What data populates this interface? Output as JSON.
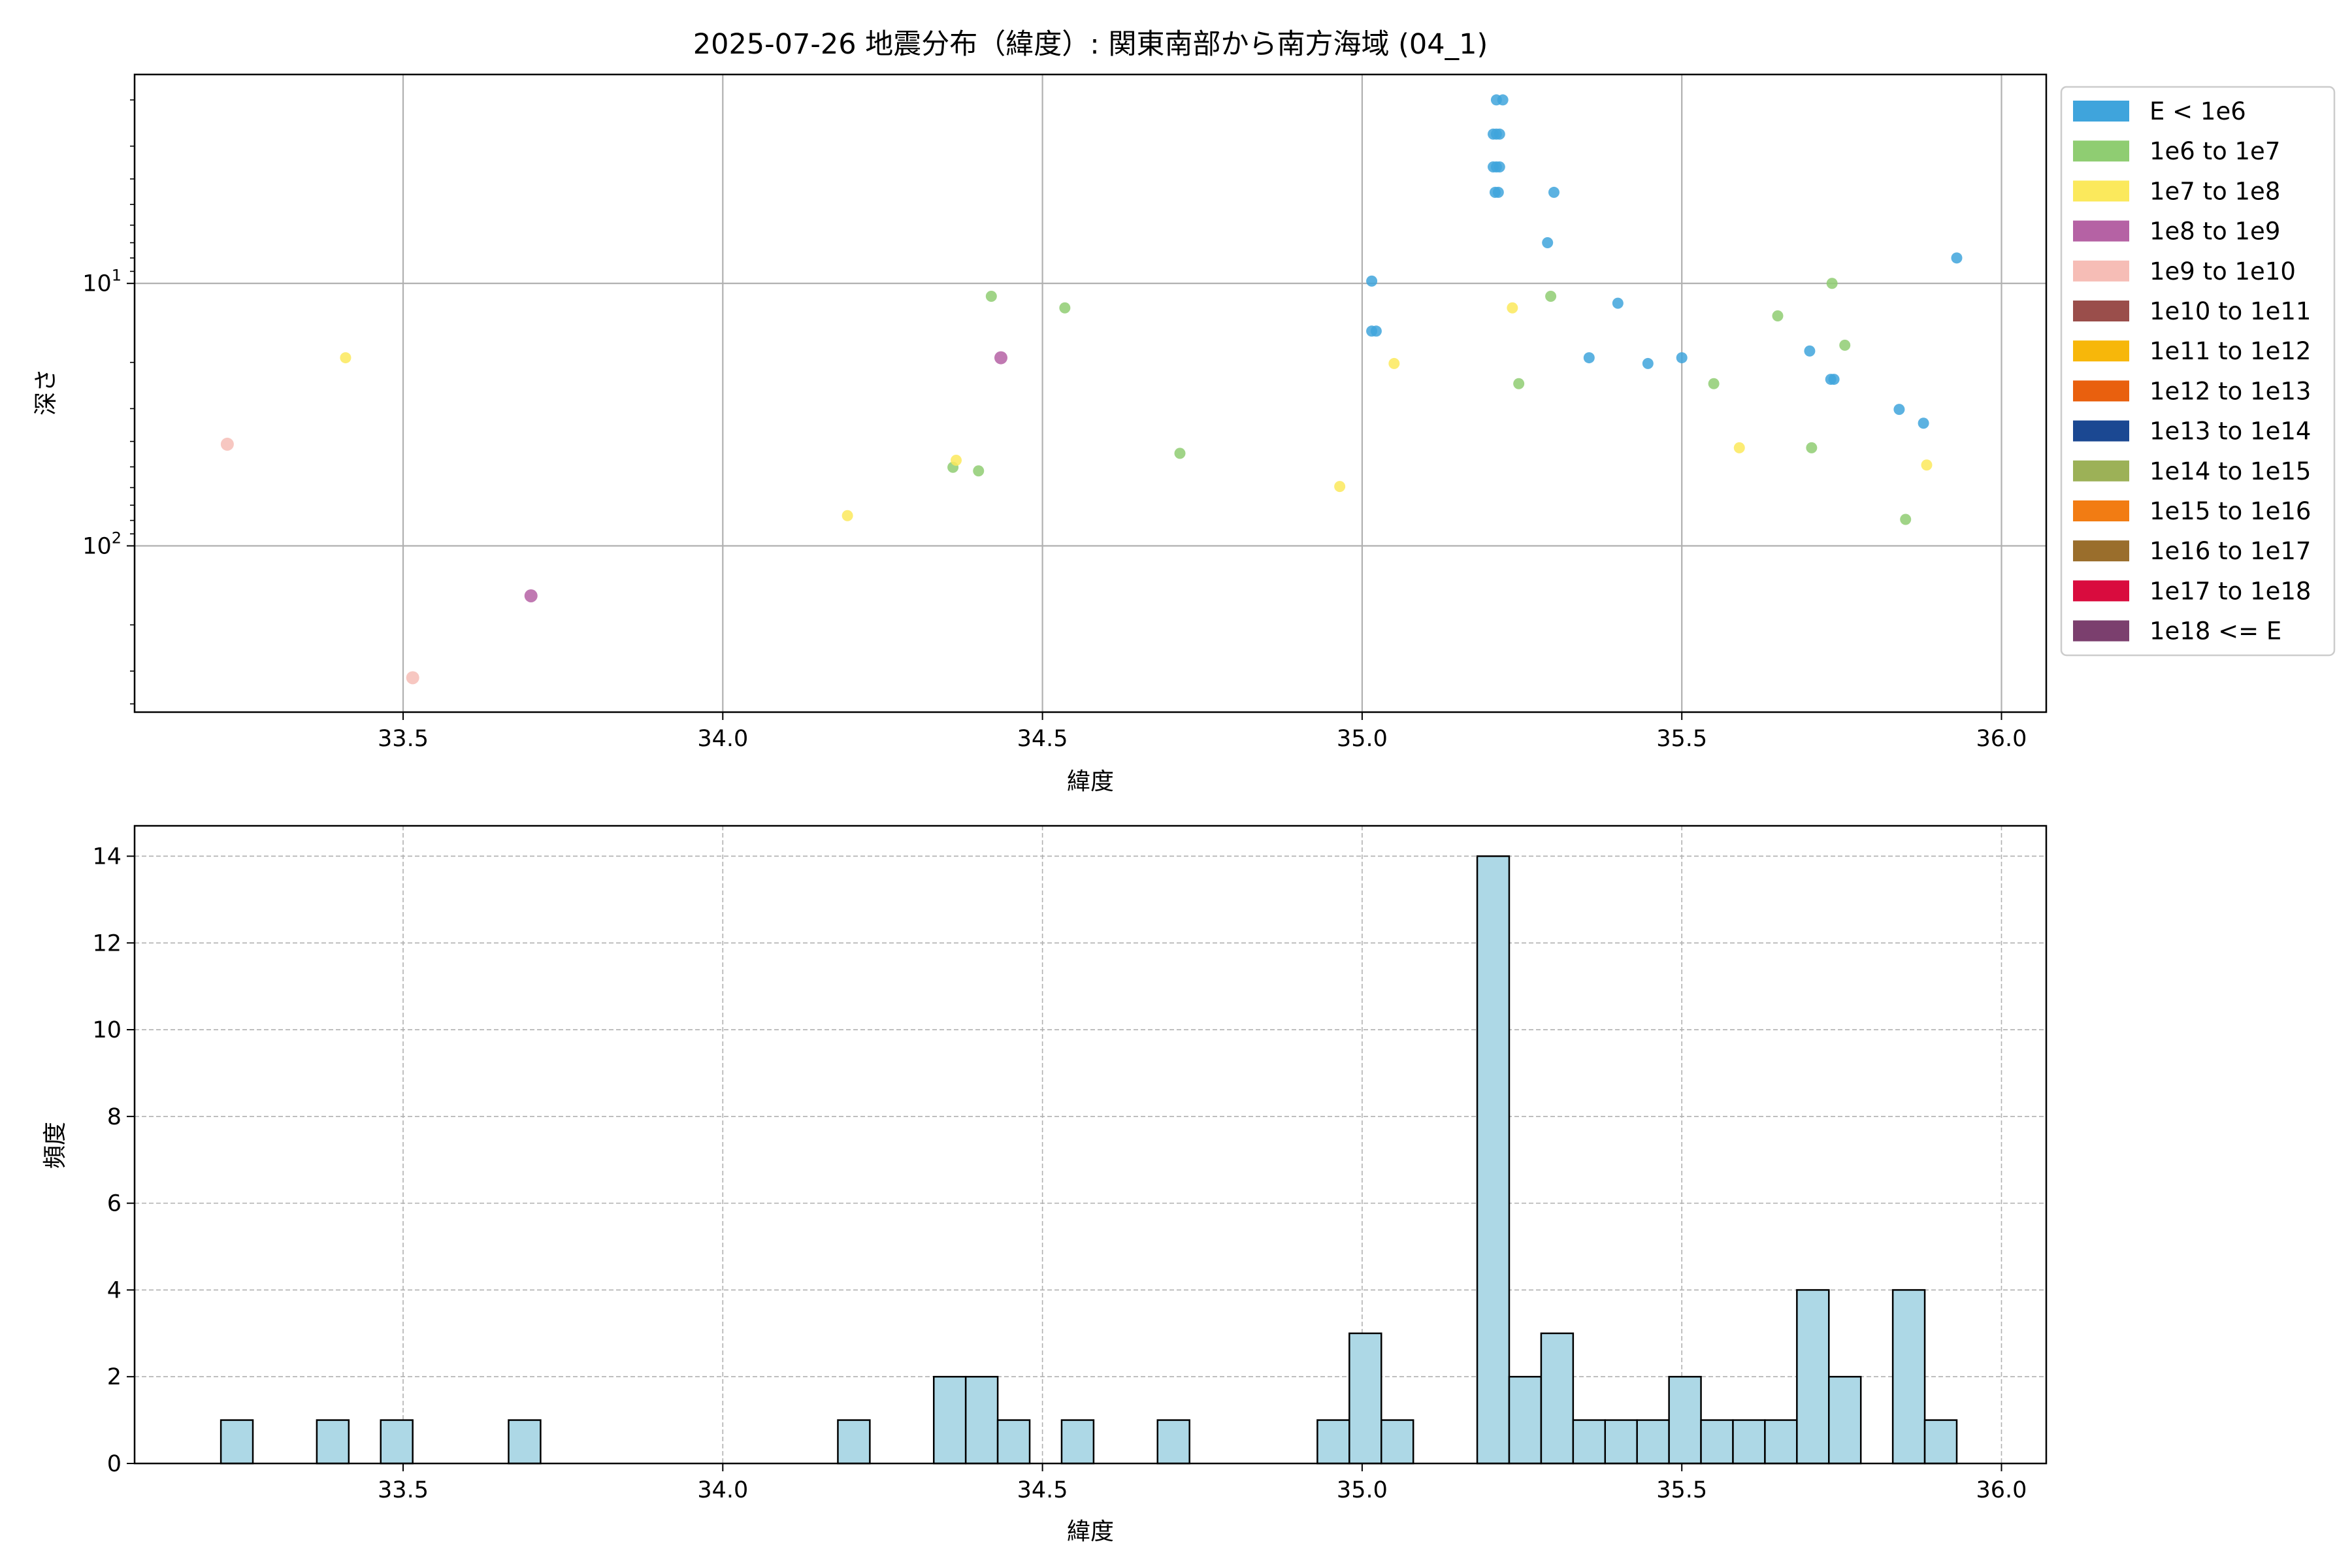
{
  "chart_data": [
    {
      "type": "scatter",
      "title": "2025-07-26 地震分布（緯度）: 関東南部から南方海域 (04_1)",
      "xlabel": "緯度",
      "ylabel": "深さ",
      "xlim": [
        33.08,
        36.07
      ],
      "ylim": [
        430,
        1.6
      ],
      "yscale": "log",
      "y_inverted": true,
      "x_ticks": [
        "33.5",
        "34.0",
        "34.5",
        "35.0",
        "35.5",
        "36.0"
      ],
      "x_tick_values": [
        33.5,
        34.0,
        34.5,
        35.0,
        35.5,
        36.0
      ],
      "y_ticks": [
        {
          "base": "10",
          "exp": "1",
          "value": 10
        },
        {
          "base": "10",
          "exp": "2",
          "value": 100
        }
      ],
      "grid": true,
      "legend_position": "outside-right-top",
      "legend": [
        {
          "label": "E < 1e6",
          "color": "#3fa4dc"
        },
        {
          "label": "1e6 to 1e7",
          "color": "#8fcd72"
        },
        {
          "label": "1e7 to 1e8",
          "color": "#fbe95c"
        },
        {
          "label": "1e8 to 1e9",
          "color": "#b562a4"
        },
        {
          "label": "1e9 to 1e10",
          "color": "#f6bdb6"
        },
        {
          "label": "1e10 to 1e11",
          "color": "#9a4e4b"
        },
        {
          "label": "1e11 to 1e12",
          "color": "#f7b70a"
        },
        {
          "label": "1e12 to 1e13",
          "color": "#e9600e"
        },
        {
          "label": "1e13 to 1e14",
          "color": "#1b4892"
        },
        {
          "label": "1e14 to 1e15",
          "color": "#9cb157"
        },
        {
          "label": "1e15 to 1e16",
          "color": "#f27c13"
        },
        {
          "label": "1e16 to 1e17",
          "color": "#9a6e2c"
        },
        {
          "label": "1e17 to 1e18",
          "color": "#d90c3e"
        },
        {
          "label": "1e18 <= E",
          "color": "#7b3f6e"
        }
      ],
      "points": [
        {
          "x": 35.21,
          "y": 2.0,
          "c": 0
        },
        {
          "x": 35.22,
          "y": 2.0,
          "c": 0
        },
        {
          "x": 35.205,
          "y": 2.7,
          "c": 0
        },
        {
          "x": 35.21,
          "y": 2.7,
          "c": 0
        },
        {
          "x": 35.215,
          "y": 2.7,
          "c": 0
        },
        {
          "x": 35.205,
          "y": 3.6,
          "c": 0
        },
        {
          "x": 35.21,
          "y": 3.6,
          "c": 0
        },
        {
          "x": 35.215,
          "y": 3.6,
          "c": 0
        },
        {
          "x": 35.208,
          "y": 4.5,
          "c": 0
        },
        {
          "x": 35.213,
          "y": 4.5,
          "c": 0
        },
        {
          "x": 35.3,
          "y": 4.5,
          "c": 0
        },
        {
          "x": 35.29,
          "y": 7.0,
          "c": 0
        },
        {
          "x": 35.93,
          "y": 8.0,
          "c": 0
        },
        {
          "x": 35.015,
          "y": 9.8,
          "c": 0
        },
        {
          "x": 35.015,
          "y": 15.2,
          "c": 0
        },
        {
          "x": 35.022,
          "y": 15.2,
          "c": 0
        },
        {
          "x": 35.4,
          "y": 11.9,
          "c": 0
        },
        {
          "x": 35.5,
          "y": 19.2,
          "c": 0
        },
        {
          "x": 35.355,
          "y": 19.2,
          "c": 0
        },
        {
          "x": 35.447,
          "y": 20.2,
          "c": 0
        },
        {
          "x": 35.7,
          "y": 18.1,
          "c": 0
        },
        {
          "x": 35.733,
          "y": 23.2,
          "c": 0
        },
        {
          "x": 35.738,
          "y": 23.2,
          "c": 0
        },
        {
          "x": 35.84,
          "y": 30.2,
          "c": 0
        },
        {
          "x": 35.878,
          "y": 34.1,
          "c": 0
        },
        {
          "x": 34.42,
          "y": 11.2,
          "c": 1
        },
        {
          "x": 34.535,
          "y": 12.4,
          "c": 1
        },
        {
          "x": 35.295,
          "y": 11.2,
          "c": 1
        },
        {
          "x": 35.735,
          "y": 10.0,
          "c": 1
        },
        {
          "x": 35.65,
          "y": 13.3,
          "c": 1
        },
        {
          "x": 35.755,
          "y": 17.2,
          "c": 1
        },
        {
          "x": 35.245,
          "y": 24.1,
          "c": 1
        },
        {
          "x": 35.55,
          "y": 24.1,
          "c": 1
        },
        {
          "x": 34.715,
          "y": 44.4,
          "c": 1
        },
        {
          "x": 35.703,
          "y": 42.3,
          "c": 1
        },
        {
          "x": 34.36,
          "y": 50.2,
          "c": 1
        },
        {
          "x": 34.4,
          "y": 51.8,
          "c": 1
        },
        {
          "x": 35.85,
          "y": 79.3,
          "c": 1
        },
        {
          "x": 33.41,
          "y": 19.2,
          "c": 2
        },
        {
          "x": 35.235,
          "y": 12.4,
          "c": 2
        },
        {
          "x": 35.05,
          "y": 20.2,
          "c": 2
        },
        {
          "x": 34.365,
          "y": 47.2,
          "c": 2
        },
        {
          "x": 35.59,
          "y": 42.3,
          "c": 2
        },
        {
          "x": 35.883,
          "y": 49.2,
          "c": 2
        },
        {
          "x": 34.965,
          "y": 59.4,
          "c": 2
        },
        {
          "x": 34.195,
          "y": 76.7,
          "c": 2
        },
        {
          "x": 34.435,
          "y": 19.2,
          "c": 3
        },
        {
          "x": 33.7,
          "y": 155.0,
          "c": 3
        },
        {
          "x": 33.225,
          "y": 41.0,
          "c": 4
        },
        {
          "x": 33.515,
          "y": 318.0,
          "c": 4
        }
      ]
    },
    {
      "type": "bar",
      "title": "",
      "xlabel": "緯度",
      "ylabel": "頻度",
      "xlim": [
        33.08,
        36.07
      ],
      "ylim": [
        0,
        14.7
      ],
      "x_ticks": [
        "33.5",
        "34.0",
        "34.5",
        "35.0",
        "35.5",
        "36.0"
      ],
      "x_tick_values": [
        33.5,
        34.0,
        34.5,
        35.0,
        35.5,
        36.0
      ],
      "y_ticks": [
        "0",
        "2",
        "4",
        "6",
        "8",
        "10",
        "12",
        "14"
      ],
      "y_tick_values": [
        0,
        2,
        4,
        6,
        8,
        10,
        12,
        14
      ],
      "grid": true,
      "bar_color": "#add8e6",
      "bin_width": 0.05,
      "bins": [
        {
          "x0": 33.215,
          "v": 1
        },
        {
          "x0": 33.365,
          "v": 1
        },
        {
          "x0": 33.465,
          "v": 1
        },
        {
          "x0": 33.665,
          "v": 1
        },
        {
          "x0": 34.18,
          "v": 1
        },
        {
          "x0": 34.33,
          "v": 2
        },
        {
          "x0": 34.38,
          "v": 2
        },
        {
          "x0": 34.43,
          "v": 1
        },
        {
          "x0": 34.53,
          "v": 1
        },
        {
          "x0": 34.68,
          "v": 1
        },
        {
          "x0": 34.93,
          "v": 1
        },
        {
          "x0": 34.98,
          "v": 3
        },
        {
          "x0": 35.03,
          "v": 1
        },
        {
          "x0": 35.18,
          "v": 14
        },
        {
          "x0": 35.23,
          "v": 2
        },
        {
          "x0": 35.28,
          "v": 3
        },
        {
          "x0": 35.33,
          "v": 1
        },
        {
          "x0": 35.38,
          "v": 1
        },
        {
          "x0": 35.43,
          "v": 1
        },
        {
          "x0": 35.48,
          "v": 2
        },
        {
          "x0": 35.53,
          "v": 1
        },
        {
          "x0": 35.58,
          "v": 1
        },
        {
          "x0": 35.63,
          "v": 1
        },
        {
          "x0": 35.68,
          "v": 4
        },
        {
          "x0": 35.73,
          "v": 2
        },
        {
          "x0": 35.83,
          "v": 4
        },
        {
          "x0": 35.88,
          "v": 1
        }
      ]
    }
  ]
}
